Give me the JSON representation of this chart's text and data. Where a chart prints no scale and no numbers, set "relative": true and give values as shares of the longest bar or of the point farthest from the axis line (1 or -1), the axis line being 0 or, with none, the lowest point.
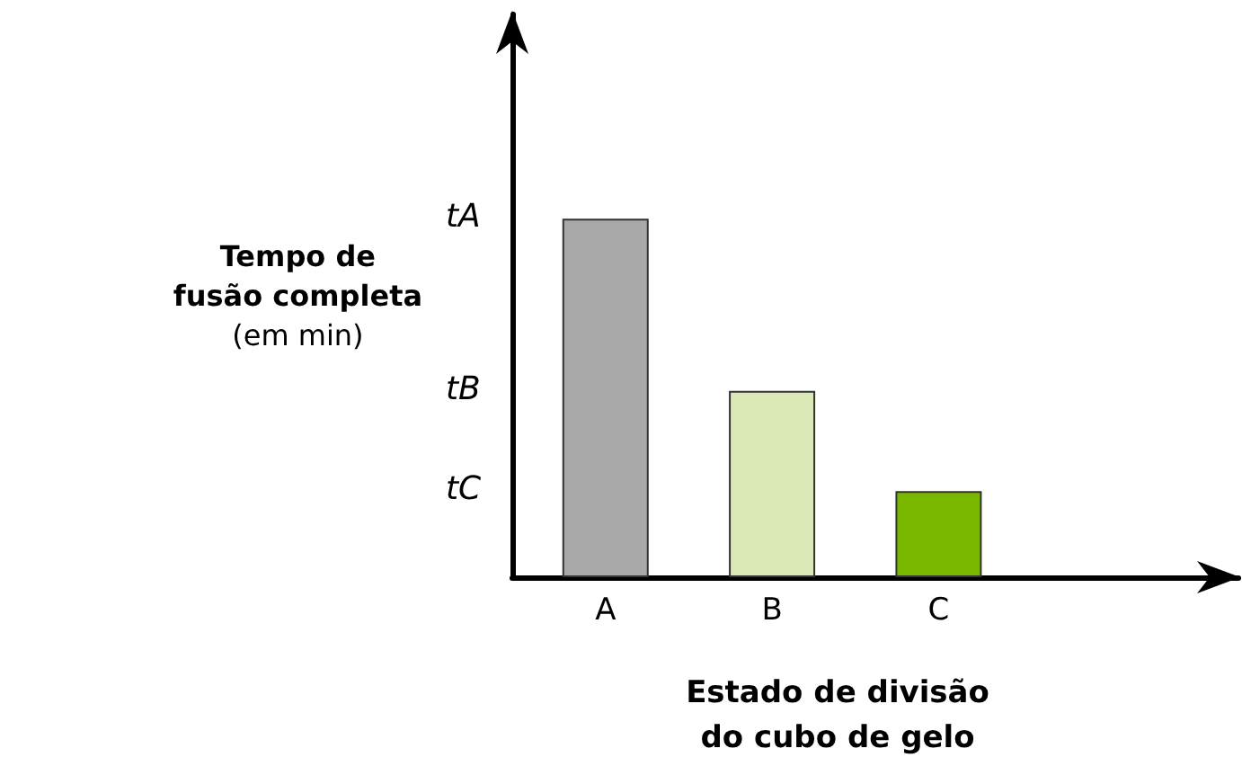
{
  "chart_data": {
    "type": "bar",
    "relative": true,
    "categories": [
      "A",
      "B",
      "C"
    ],
    "values": [
      1,
      0.52,
      0.24
    ],
    "colors": [
      "#a9a9a9",
      "#dae9b6",
      "#7ab800"
    ],
    "xlabel": "Estado de divisão\ndo cubo de gelo",
    "ylabel": "Tempo de\nfusão completa\n(em min)",
    "annotations": [
      "tA",
      "tB",
      "tC"
    ]
  }
}
